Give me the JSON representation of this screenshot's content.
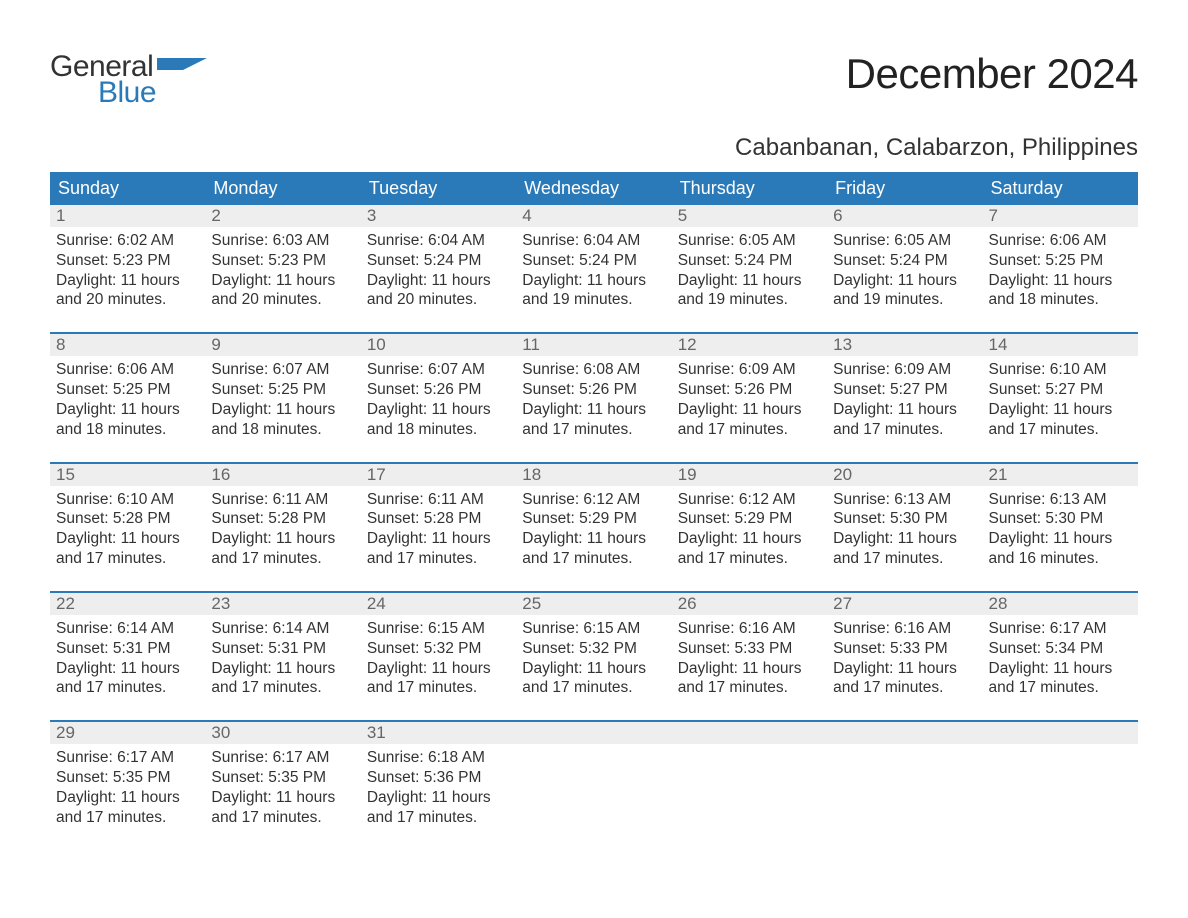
{
  "logo": {
    "word1": "General",
    "word2": "Blue",
    "flag_color": "#2a7ab9"
  },
  "title": "December 2024",
  "location": "Cabanbanan, Calabarzon, Philippines",
  "colors": {
    "header_bg": "#2a7ab9",
    "header_text": "#ffffff",
    "daynum_bg": "#eeeeee",
    "daynum_text": "#666666",
    "body_text": "#333333",
    "row_border": "#2a7ab9",
    "background": "#ffffff"
  },
  "typography": {
    "title_fontsize": 42,
    "location_fontsize": 24,
    "weekday_fontsize": 18,
    "daynum_fontsize": 17,
    "body_fontsize": 15.5
  },
  "weekdays": [
    "Sunday",
    "Monday",
    "Tuesday",
    "Wednesday",
    "Thursday",
    "Friday",
    "Saturday"
  ],
  "weeks": [
    [
      {
        "num": "1",
        "sunrise": "Sunrise: 6:02 AM",
        "sunset": "Sunset: 5:23 PM",
        "day1": "Daylight: 11 hours",
        "day2": "and 20 minutes."
      },
      {
        "num": "2",
        "sunrise": "Sunrise: 6:03 AM",
        "sunset": "Sunset: 5:23 PM",
        "day1": "Daylight: 11 hours",
        "day2": "and 20 minutes."
      },
      {
        "num": "3",
        "sunrise": "Sunrise: 6:04 AM",
        "sunset": "Sunset: 5:24 PM",
        "day1": "Daylight: 11 hours",
        "day2": "and 20 minutes."
      },
      {
        "num": "4",
        "sunrise": "Sunrise: 6:04 AM",
        "sunset": "Sunset: 5:24 PM",
        "day1": "Daylight: 11 hours",
        "day2": "and 19 minutes."
      },
      {
        "num": "5",
        "sunrise": "Sunrise: 6:05 AM",
        "sunset": "Sunset: 5:24 PM",
        "day1": "Daylight: 11 hours",
        "day2": "and 19 minutes."
      },
      {
        "num": "6",
        "sunrise": "Sunrise: 6:05 AM",
        "sunset": "Sunset: 5:24 PM",
        "day1": "Daylight: 11 hours",
        "day2": "and 19 minutes."
      },
      {
        "num": "7",
        "sunrise": "Sunrise: 6:06 AM",
        "sunset": "Sunset: 5:25 PM",
        "day1": "Daylight: 11 hours",
        "day2": "and 18 minutes."
      }
    ],
    [
      {
        "num": "8",
        "sunrise": "Sunrise: 6:06 AM",
        "sunset": "Sunset: 5:25 PM",
        "day1": "Daylight: 11 hours",
        "day2": "and 18 minutes."
      },
      {
        "num": "9",
        "sunrise": "Sunrise: 6:07 AM",
        "sunset": "Sunset: 5:25 PM",
        "day1": "Daylight: 11 hours",
        "day2": "and 18 minutes."
      },
      {
        "num": "10",
        "sunrise": "Sunrise: 6:07 AM",
        "sunset": "Sunset: 5:26 PM",
        "day1": "Daylight: 11 hours",
        "day2": "and 18 minutes."
      },
      {
        "num": "11",
        "sunrise": "Sunrise: 6:08 AM",
        "sunset": "Sunset: 5:26 PM",
        "day1": "Daylight: 11 hours",
        "day2": "and 17 minutes."
      },
      {
        "num": "12",
        "sunrise": "Sunrise: 6:09 AM",
        "sunset": "Sunset: 5:26 PM",
        "day1": "Daylight: 11 hours",
        "day2": "and 17 minutes."
      },
      {
        "num": "13",
        "sunrise": "Sunrise: 6:09 AM",
        "sunset": "Sunset: 5:27 PM",
        "day1": "Daylight: 11 hours",
        "day2": "and 17 minutes."
      },
      {
        "num": "14",
        "sunrise": "Sunrise: 6:10 AM",
        "sunset": "Sunset: 5:27 PM",
        "day1": "Daylight: 11 hours",
        "day2": "and 17 minutes."
      }
    ],
    [
      {
        "num": "15",
        "sunrise": "Sunrise: 6:10 AM",
        "sunset": "Sunset: 5:28 PM",
        "day1": "Daylight: 11 hours",
        "day2": "and 17 minutes."
      },
      {
        "num": "16",
        "sunrise": "Sunrise: 6:11 AM",
        "sunset": "Sunset: 5:28 PM",
        "day1": "Daylight: 11 hours",
        "day2": "and 17 minutes."
      },
      {
        "num": "17",
        "sunrise": "Sunrise: 6:11 AM",
        "sunset": "Sunset: 5:28 PM",
        "day1": "Daylight: 11 hours",
        "day2": "and 17 minutes."
      },
      {
        "num": "18",
        "sunrise": "Sunrise: 6:12 AM",
        "sunset": "Sunset: 5:29 PM",
        "day1": "Daylight: 11 hours",
        "day2": "and 17 minutes."
      },
      {
        "num": "19",
        "sunrise": "Sunrise: 6:12 AM",
        "sunset": "Sunset: 5:29 PM",
        "day1": "Daylight: 11 hours",
        "day2": "and 17 minutes."
      },
      {
        "num": "20",
        "sunrise": "Sunrise: 6:13 AM",
        "sunset": "Sunset: 5:30 PM",
        "day1": "Daylight: 11 hours",
        "day2": "and 17 minutes."
      },
      {
        "num": "21",
        "sunrise": "Sunrise: 6:13 AM",
        "sunset": "Sunset: 5:30 PM",
        "day1": "Daylight: 11 hours",
        "day2": "and 16 minutes."
      }
    ],
    [
      {
        "num": "22",
        "sunrise": "Sunrise: 6:14 AM",
        "sunset": "Sunset: 5:31 PM",
        "day1": "Daylight: 11 hours",
        "day2": "and 17 minutes."
      },
      {
        "num": "23",
        "sunrise": "Sunrise: 6:14 AM",
        "sunset": "Sunset: 5:31 PM",
        "day1": "Daylight: 11 hours",
        "day2": "and 17 minutes."
      },
      {
        "num": "24",
        "sunrise": "Sunrise: 6:15 AM",
        "sunset": "Sunset: 5:32 PM",
        "day1": "Daylight: 11 hours",
        "day2": "and 17 minutes."
      },
      {
        "num": "25",
        "sunrise": "Sunrise: 6:15 AM",
        "sunset": "Sunset: 5:32 PM",
        "day1": "Daylight: 11 hours",
        "day2": "and 17 minutes."
      },
      {
        "num": "26",
        "sunrise": "Sunrise: 6:16 AM",
        "sunset": "Sunset: 5:33 PM",
        "day1": "Daylight: 11 hours",
        "day2": "and 17 minutes."
      },
      {
        "num": "27",
        "sunrise": "Sunrise: 6:16 AM",
        "sunset": "Sunset: 5:33 PM",
        "day1": "Daylight: 11 hours",
        "day2": "and 17 minutes."
      },
      {
        "num": "28",
        "sunrise": "Sunrise: 6:17 AM",
        "sunset": "Sunset: 5:34 PM",
        "day1": "Daylight: 11 hours",
        "day2": "and 17 minutes."
      }
    ],
    [
      {
        "num": "29",
        "sunrise": "Sunrise: 6:17 AM",
        "sunset": "Sunset: 5:35 PM",
        "day1": "Daylight: 11 hours",
        "day2": "and 17 minutes."
      },
      {
        "num": "30",
        "sunrise": "Sunrise: 6:17 AM",
        "sunset": "Sunset: 5:35 PM",
        "day1": "Daylight: 11 hours",
        "day2": "and 17 minutes."
      },
      {
        "num": "31",
        "sunrise": "Sunrise: 6:18 AM",
        "sunset": "Sunset: 5:36 PM",
        "day1": "Daylight: 11 hours",
        "day2": "and 17 minutes."
      },
      null,
      null,
      null,
      null
    ]
  ]
}
